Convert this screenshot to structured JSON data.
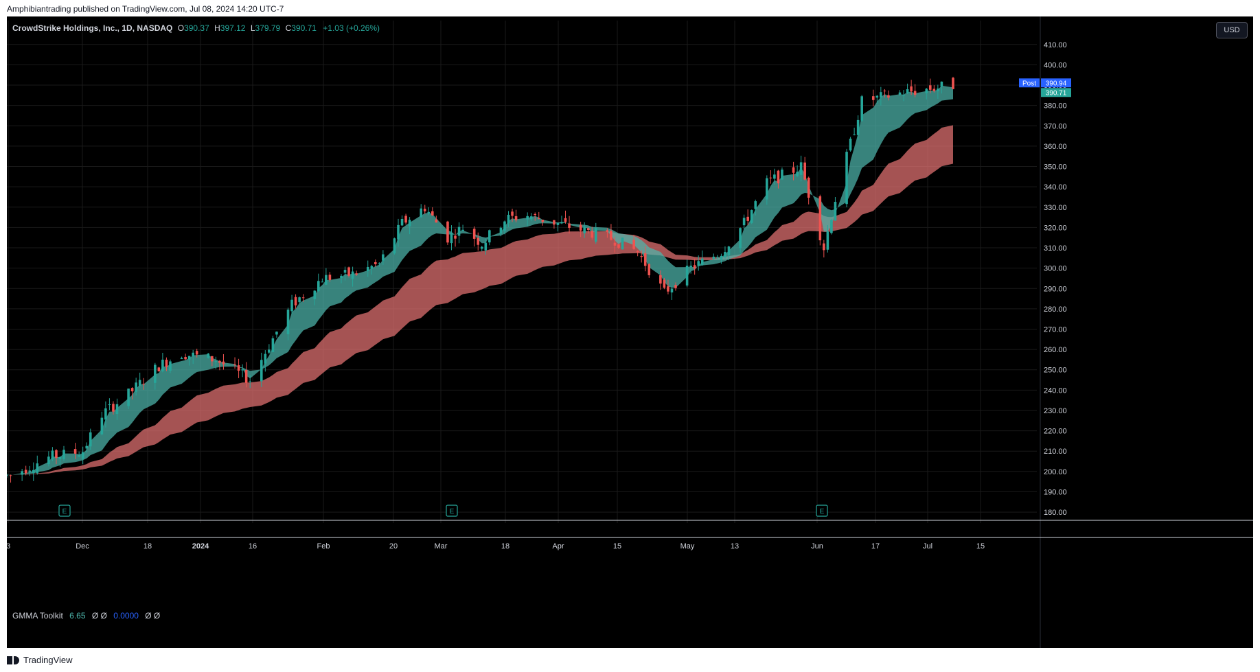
{
  "caption": "Amphibiantrading published on TradingView.com, Jul 08, 2024 14:20 UTC-7",
  "legend": {
    "symbol": "CrowdStrike Holdings, Inc., 1D, NASDAQ",
    "o_label": "O",
    "o_value": "390.37",
    "h_label": "H",
    "h_value": "397.12",
    "l_label": "L",
    "l_value": "379.79",
    "c_label": "C",
    "c_value": "390.71",
    "change": "+1.03 (+0.26%)"
  },
  "currency": "USD",
  "price_labels": {
    "post_label": "Post",
    "post_value": "390.94",
    "last_value": "390.71"
  },
  "gmma": {
    "name": "GMMA Toolkit",
    "value1": "6.65",
    "value2": "Ø Ø",
    "value3": "0.0000",
    "value4": "Ø Ø"
  },
  "footer": "TradingView",
  "colors": {
    "up": "#26a69a",
    "down": "#ef5350",
    "short_band": "#4db6ac",
    "long_band": "#e57373",
    "post_badge": "#2962ff",
    "last_badge": "#26a69a"
  },
  "chart_data": {
    "type": "candlestick",
    "ylim": [
      178,
      415
    ],
    "y_ticks": [
      "410.00",
      "400.00",
      "390.00",
      "380.00",
      "370.00",
      "360.00",
      "350.00",
      "340.00",
      "330.00",
      "320.00",
      "310.00",
      "300.00",
      "290.00",
      "280.00",
      "270.00",
      "260.00",
      "250.00",
      "240.00",
      "230.00",
      "220.00",
      "210.00",
      "200.00",
      "190.00",
      "180.00"
    ],
    "x_ticks": [
      "3",
      "Dec",
      "18",
      "2024",
      "16",
      "Feb",
      "20",
      "Mar",
      "18",
      "Apr",
      "15",
      "May",
      "13",
      "Jun",
      "17",
      "Jul",
      "15"
    ],
    "events": [
      "E",
      "E",
      "E"
    ],
    "price_path": [
      [
        "2023-11-03",
        198
      ],
      [
        "2023-11-13",
        207
      ],
      [
        "2023-11-22",
        210
      ],
      [
        "2023-11-27",
        228
      ],
      [
        "2023-12-04",
        238
      ],
      [
        "2023-12-12",
        252
      ],
      [
        "2023-12-18",
        258
      ],
      [
        "2023-12-27",
        255
      ],
      [
        "2024-01-05",
        245
      ],
      [
        "2024-01-10",
        262
      ],
      [
        "2024-01-16",
        282
      ],
      [
        "2024-01-24",
        295
      ],
      [
        "2024-02-01",
        297
      ],
      [
        "2024-02-08",
        302
      ],
      [
        "2024-02-14",
        322
      ],
      [
        "2024-02-20",
        330
      ],
      [
        "2024-02-26",
        315
      ],
      [
        "2024-03-01",
        320
      ],
      [
        "2024-03-06",
        312
      ],
      [
        "2024-03-12",
        324
      ],
      [
        "2024-03-18",
        326
      ],
      [
        "2024-03-26",
        322
      ],
      [
        "2024-04-03",
        318
      ],
      [
        "2024-04-10",
        314
      ],
      [
        "2024-04-16",
        308
      ],
      [
        "2024-04-23",
        288
      ],
      [
        "2024-04-30",
        300
      ],
      [
        "2024-05-08",
        308
      ],
      [
        "2024-05-14",
        322
      ],
      [
        "2024-05-20",
        342
      ],
      [
        "2024-05-29",
        350
      ],
      [
        "2024-06-04",
        310
      ],
      [
        "2024-06-07",
        334
      ],
      [
        "2024-06-14",
        382
      ],
      [
        "2024-06-24",
        386
      ],
      [
        "2024-07-08",
        390
      ]
    ]
  }
}
